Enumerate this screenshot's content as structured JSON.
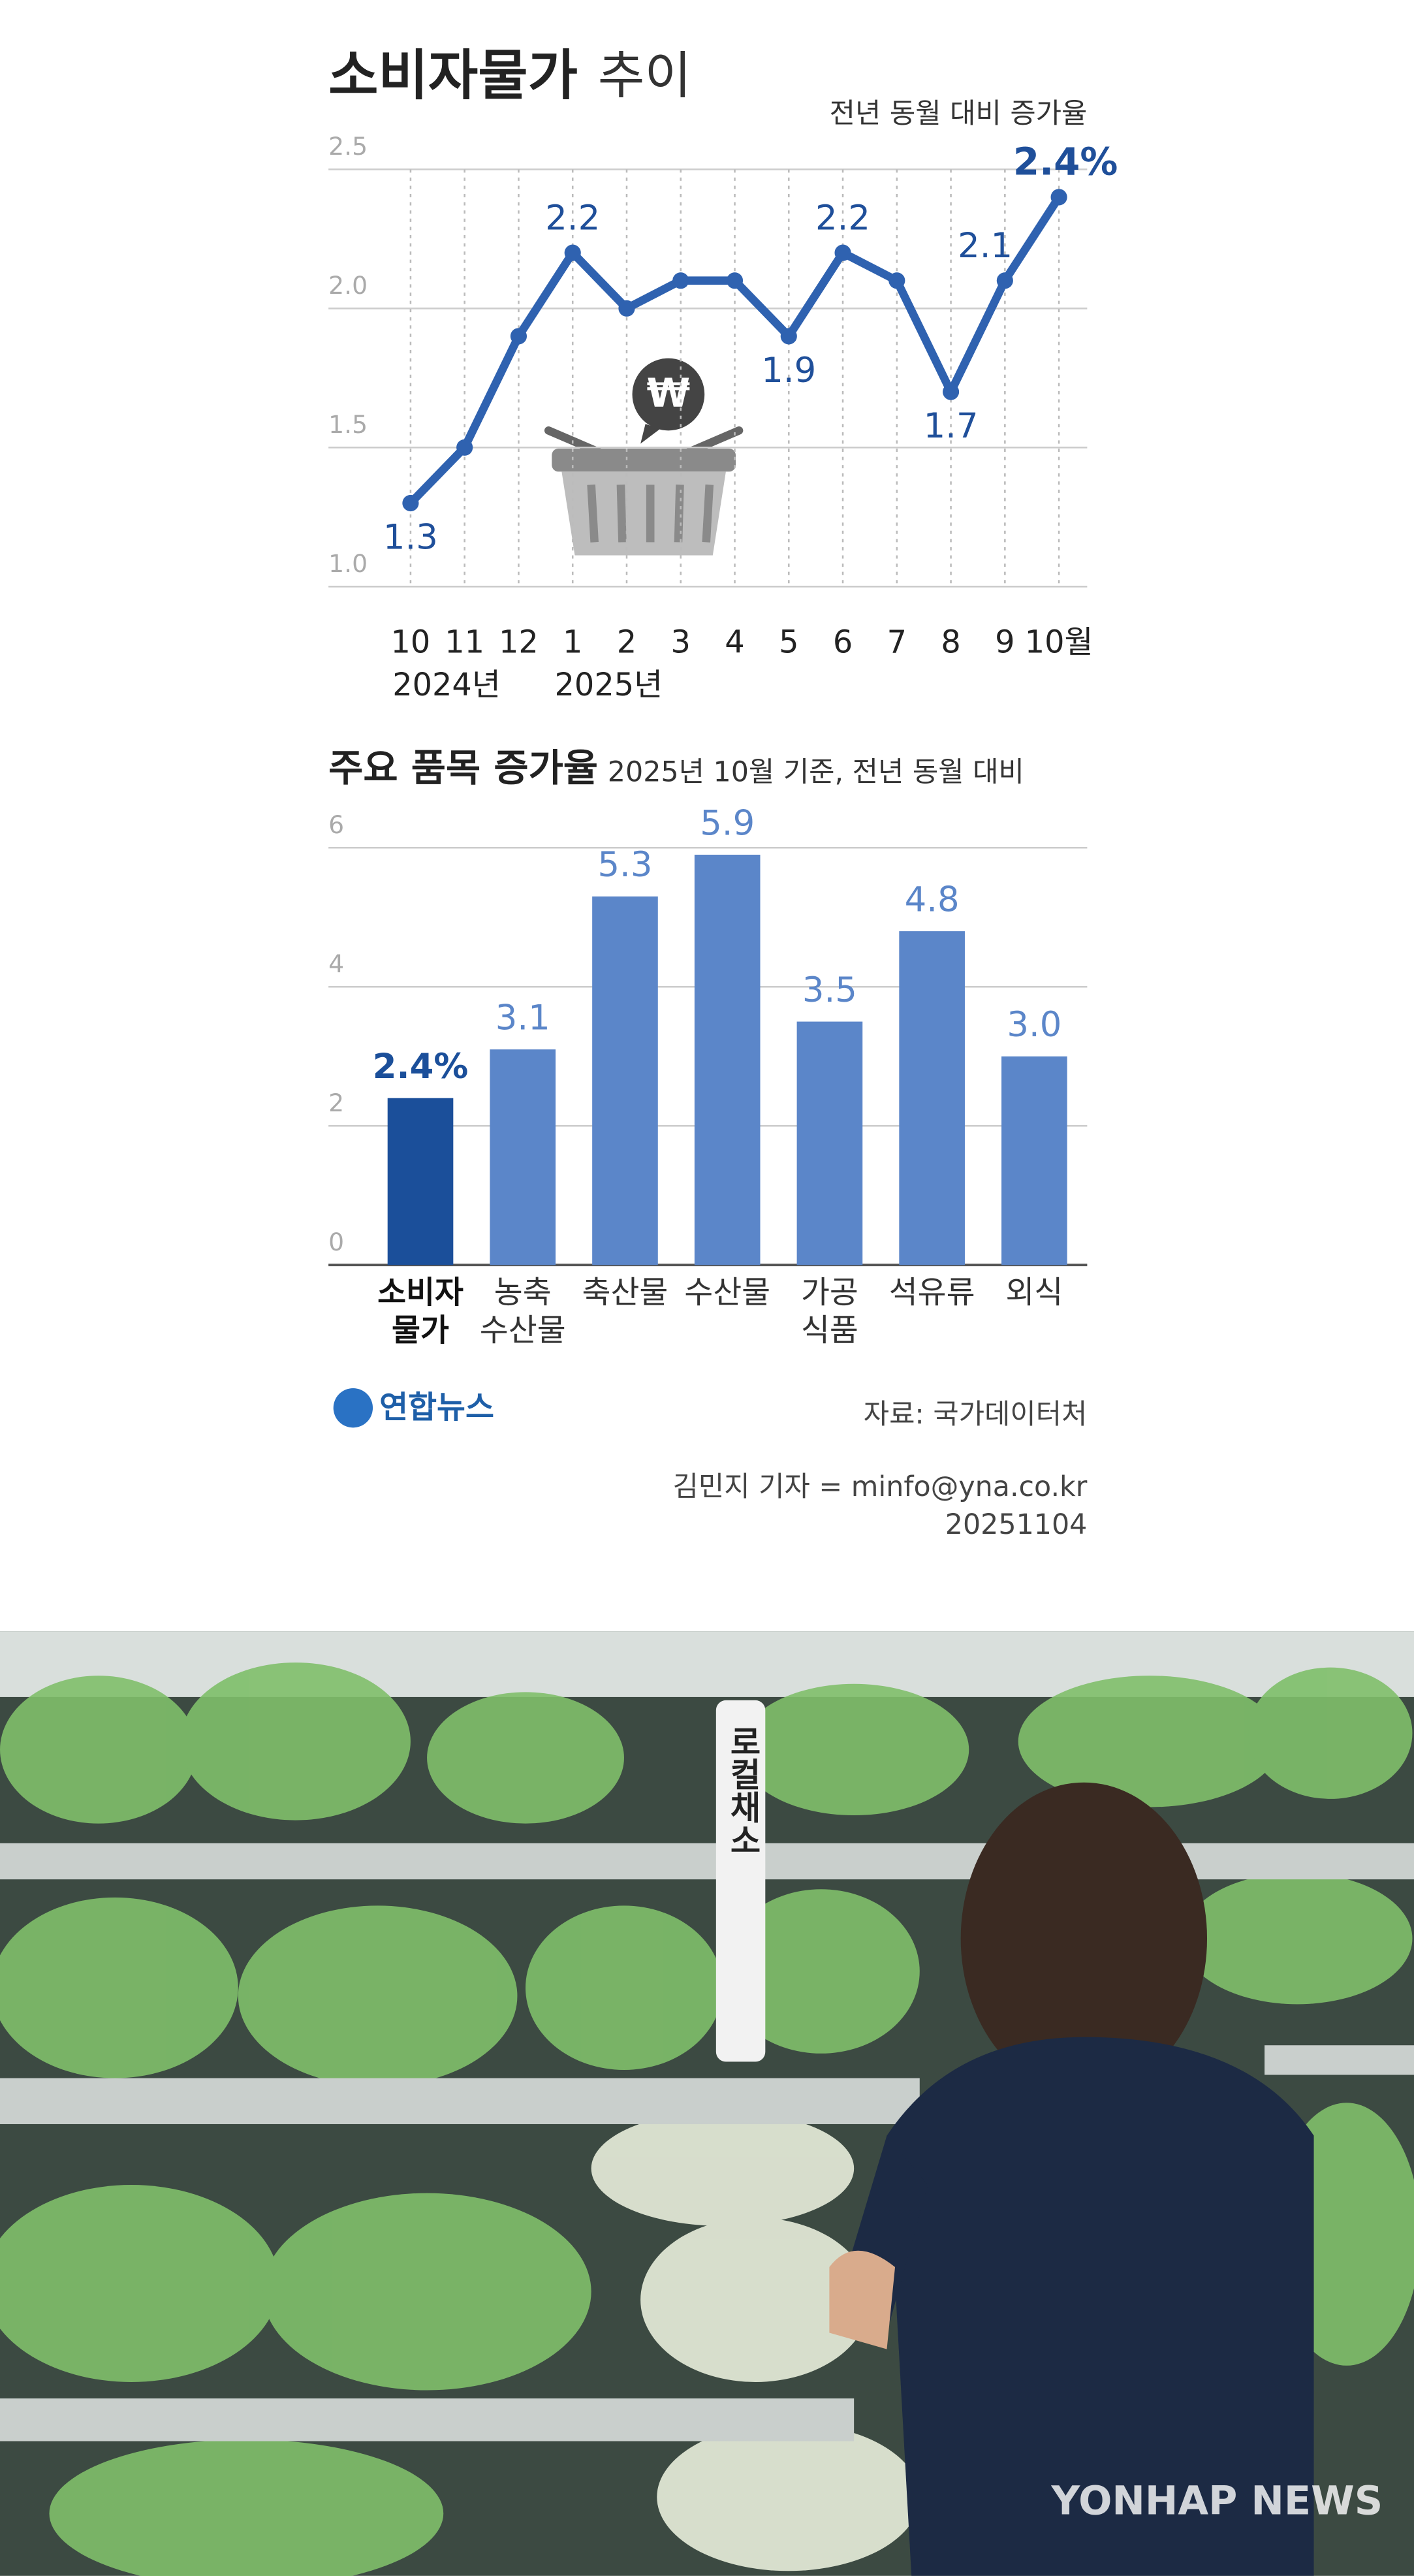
{
  "chart_data": [
    {
      "type": "line",
      "title": "소비자물가",
      "title_suffix": "추이",
      "unit_note": "전년 동월 대비 증가율",
      "categories": [
        "10",
        "11",
        "12",
        "1",
        "2",
        "3",
        "4",
        "5",
        "6",
        "7",
        "8",
        "9",
        "10월"
      ],
      "year_labels": [
        "2024년",
        "2025년"
      ],
      "values": [
        1.3,
        1.5,
        1.9,
        2.2,
        2.0,
        2.1,
        2.1,
        1.9,
        2.2,
        2.1,
        1.7,
        2.1,
        2.4
      ],
      "value_labels": [
        "1.3",
        null,
        null,
        "2.2",
        null,
        null,
        null,
        "1.9",
        "2.2",
        null,
        "1.7",
        "2.1",
        "2.4%"
      ],
      "color": "#2f62b0",
      "ylim": [
        1.0,
        2.5
      ],
      "yticks": [
        {
          "value": 1.0,
          "label": "1.0"
        },
        {
          "value": 1.5,
          "label": "1.5"
        },
        {
          "value": 2.0,
          "label": "2.0"
        },
        {
          "value": 2.5,
          "label": "2.5"
        }
      ],
      "grid": true
    },
    {
      "type": "bar",
      "title": "주요 품목 증가율",
      "subtitle": "2025년 10월 기준, 전년 동월 대비",
      "categories": [
        [
          "소비자",
          "물가"
        ],
        [
          "농축",
          "수산물"
        ],
        [
          "축산물"
        ],
        [
          "수산물"
        ],
        [
          "가공",
          "식품"
        ],
        [
          "석유류"
        ],
        [
          "외식"
        ]
      ],
      "values": [
        2.4,
        3.1,
        5.3,
        5.9,
        3.5,
        4.8,
        3.0
      ],
      "value_labels": [
        "2.4%",
        "3.1",
        "5.3",
        "5.9",
        "3.5",
        "4.8",
        "3.0"
      ],
      "colors": [
        "#1b4f9a",
        "#5b86c9",
        "#5b86c9",
        "#5b86c9",
        "#5b86c9",
        "#5b86c9",
        "#5b86c9"
      ],
      "ylim": [
        0,
        6
      ],
      "yticks": [
        0,
        2,
        4,
        6
      ],
      "grid": true
    }
  ],
  "footer": {
    "logo": "연합뉴스",
    "source": "자료: 국가데이터처",
    "byline": "김민지 기자 = minfo@yna.co.kr",
    "date": "20251104"
  },
  "photo": {
    "sign": "로컬채소",
    "watermark": "YONHAP NEWS"
  }
}
